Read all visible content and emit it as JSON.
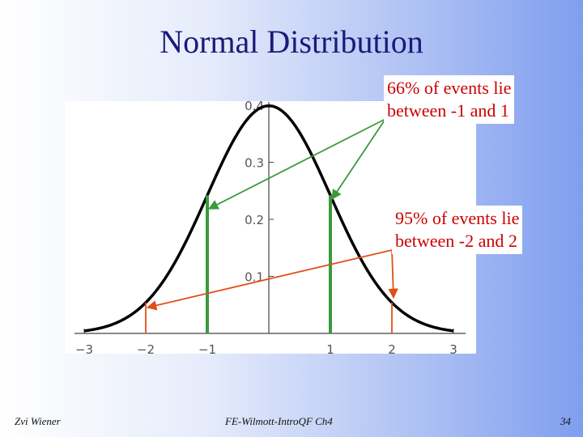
{
  "slide": {
    "title": "Normal Distribution",
    "footer_left": "Zvi Wiener",
    "footer_center": "FE-Wilmott-IntroQF Ch4",
    "page_number": "34"
  },
  "annotations": [
    {
      "lines": [
        "66% of events lie",
        "between -1 and 1"
      ],
      "color": "#cc0000",
      "arrow_color": "#3a9a3a",
      "points_to_x": [
        -1,
        1
      ]
    },
    {
      "lines": [
        "95% of events lie",
        "between -2 and 2"
      ],
      "color": "#cc0000",
      "arrow_color": "#e0501a",
      "points_to_x": [
        -2,
        2
      ]
    }
  ],
  "chart_data": {
    "type": "line",
    "title": "",
    "xlabel": "",
    "ylabel": "",
    "xlim": [
      -3,
      3
    ],
    "ylim": [
      0,
      0.4
    ],
    "x_ticks": [
      -3,
      -2,
      -1,
      1,
      2,
      3
    ],
    "x_tick_labels": [
      "−3",
      "−2",
      "−1",
      "1",
      "2",
      "3"
    ],
    "y_ticks": [
      0.1,
      0.2,
      0.3,
      0.4
    ],
    "y_tick_labels": [
      "0.1",
      "0.2",
      "0.3",
      "0.4"
    ],
    "series": [
      {
        "x": [
          -3,
          -2.75,
          -2.5,
          -2.25,
          -2,
          -1.75,
          -1.5,
          -1.25,
          -1,
          -0.75,
          -0.5,
          -0.25,
          0,
          0.25,
          0.5,
          0.75,
          1,
          1.25,
          1.5,
          1.75,
          2,
          2.25,
          2.5,
          2.75,
          3
        ],
        "y": [
          0.0044,
          0.0091,
          0.0175,
          0.0317,
          0.054,
          0.0863,
          0.1295,
          0.1826,
          0.242,
          0.3011,
          0.3521,
          0.3867,
          0.3989,
          0.3867,
          0.3521,
          0.3011,
          0.242,
          0.1826,
          0.1295,
          0.0863,
          0.054,
          0.0317,
          0.0175,
          0.0091,
          0.0044
        ],
        "color": "#000000"
      }
    ],
    "vertical_lines": [
      {
        "x": -1,
        "y": 0.242,
        "color": "#3a9a3a"
      },
      {
        "x": 1,
        "y": 0.242,
        "color": "#3a9a3a"
      },
      {
        "x": -2,
        "y": 0.054,
        "color": "#e0501a"
      },
      {
        "x": 2,
        "y": 0.054,
        "color": "#e0501a"
      }
    ],
    "grid": false,
    "legend": "none"
  }
}
